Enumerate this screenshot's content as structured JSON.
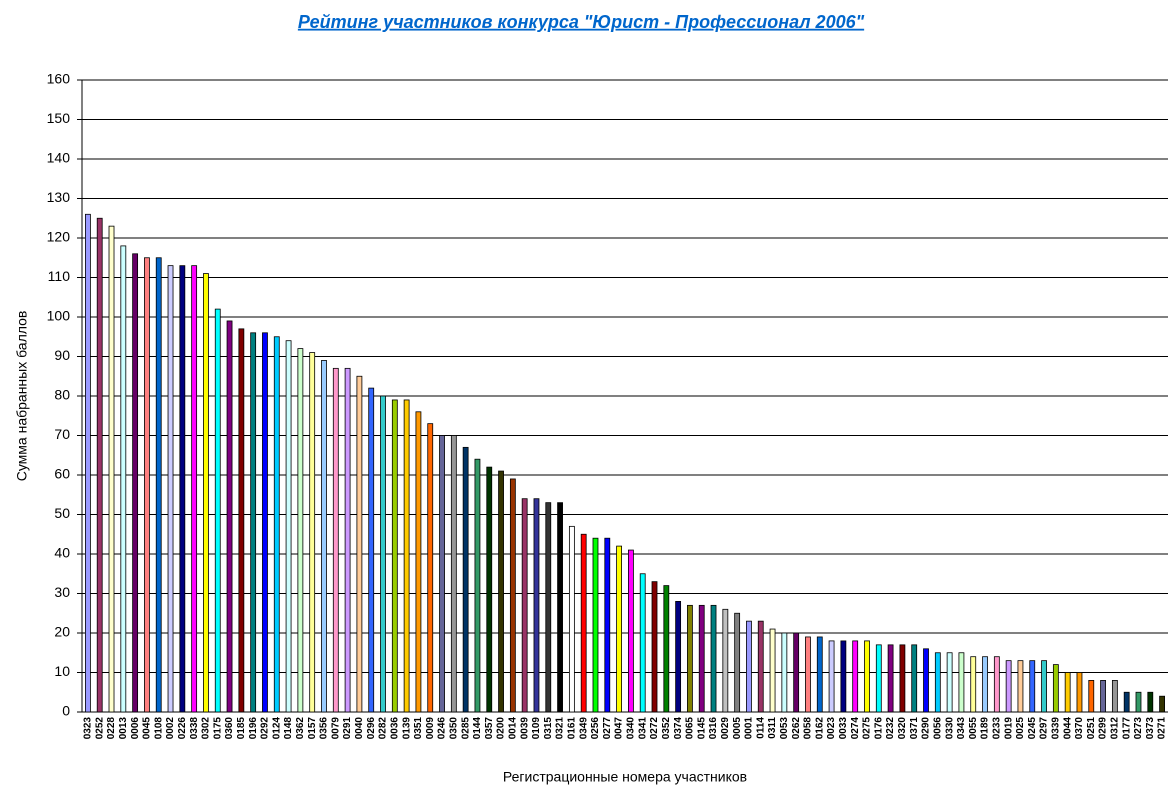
{
  "chart_data": {
    "type": "bar",
    "title": "Рейтинг участников конкурса \"Юрист - Профессионал 2006\"",
    "x_label": "Регистрационные номера участников",
    "y_label": "Сумма набранных баллов",
    "categories": [
      "0323",
      "0252",
      "0228",
      "0013",
      "0006",
      "0045",
      "0108",
      "0002",
      "0226",
      "0338",
      "0302",
      "0175",
      "0360",
      "0185",
      "0196",
      "0292",
      "0124",
      "0148",
      "0362",
      "0157",
      "0356",
      "0079",
      "0291",
      "0040",
      "0296",
      "0282",
      "0036",
      "0139",
      "0351",
      "0009",
      "0246",
      "0350",
      "0285",
      "0144",
      "0357",
      "0200",
      "0014",
      "0039",
      "0109",
      "0315",
      "0321",
      "0161",
      "0349",
      "0256",
      "0277",
      "0047",
      "0340",
      "0341",
      "0272",
      "0352",
      "0374",
      "0065",
      "0145",
      "0316",
      "0029",
      "0005",
      "0001",
      "0114",
      "0311",
      "0053",
      "0262",
      "0058",
      "0162",
      "0023",
      "0033",
      "0274",
      "0275",
      "0176",
      "0232",
      "0320",
      "0371",
      "0290",
      "0056",
      "0330",
      "0343",
      "0055",
      "0189",
      "0233",
      "0019",
      "0025",
      "0245",
      "0297",
      "0339",
      "0044",
      "0370",
      "0251",
      "0299",
      "0312",
      "0177",
      "0273",
      "0373",
      "0271"
    ],
    "values": [
      126,
      125,
      123,
      118,
      116,
      115,
      115,
      113,
      113,
      113,
      111,
      102,
      99,
      97,
      96,
      96,
      95,
      94,
      92,
      91,
      89,
      87,
      87,
      85,
      82,
      80,
      79,
      79,
      76,
      73,
      70,
      70,
      67,
      64,
      62,
      61,
      59,
      54,
      54,
      53,
      53,
      47,
      45,
      44,
      44,
      42,
      41,
      35,
      33,
      32,
      28,
      27,
      27,
      27,
      26,
      25,
      23,
      23,
      21,
      20,
      20,
      19,
      19,
      18,
      18,
      18,
      18,
      17,
      17,
      17,
      17,
      16,
      15,
      15,
      15,
      14,
      14,
      14,
      13,
      13,
      13,
      13,
      12,
      10,
      10,
      8,
      8,
      8,
      5,
      5,
      5,
      4
    ],
    "colors": [
      "#9999ff",
      "#993366",
      "#ffffcc",
      "#ccffff",
      "#660066",
      "#ff8080",
      "#0066cc",
      "#ccccff",
      "#000080",
      "#ff00ff",
      "#ffff00",
      "#00ffff",
      "#800080",
      "#800000",
      "#008080",
      "#0000ff",
      "#00ccff",
      "#ccffff",
      "#ccffcc",
      "#ffff99",
      "#99ccff",
      "#ff99cc",
      "#cc99ff",
      "#ffcc99",
      "#3366ff",
      "#33cccc",
      "#99cc00",
      "#ffcc00",
      "#ff9900",
      "#ff6600",
      "#666699",
      "#969696",
      "#003366",
      "#339966",
      "#003300",
      "#333300",
      "#993300",
      "#993366",
      "#333399",
      "#333333",
      "#000000",
      "#ffffff",
      "#ff0000",
      "#00ff00",
      "#0000ff",
      "#ffff00",
      "#ff00ff",
      "#00ffff",
      "#800000",
      "#008000",
      "#000080",
      "#808000",
      "#800080",
      "#008080",
      "#c0c0c0",
      "#808080",
      "#9999ff",
      "#993366",
      "#ffffcc",
      "#ccffff",
      "#660066",
      "#ff8080",
      "#0066cc",
      "#ccccff",
      "#000080",
      "#ff00ff",
      "#ffff00",
      "#00ffff",
      "#800080",
      "#800000",
      "#008080",
      "#0000ff",
      "#00ccff",
      "#ccffff",
      "#ccffcc",
      "#ffff99",
      "#99ccff",
      "#ff99cc",
      "#cc99ff",
      "#ffcc99",
      "#3366ff",
      "#33cccc",
      "#99cc00",
      "#ffcc00",
      "#ff9900",
      "#ff6600",
      "#666699",
      "#969696",
      "#003366",
      "#339966",
      "#003300",
      "#333300"
    ],
    "ylim": [
      0,
      160
    ],
    "yticks": [
      0,
      10,
      20,
      30,
      40,
      50,
      60,
      70,
      80,
      90,
      100,
      110,
      120,
      130,
      140,
      150,
      160
    ],
    "grid": true
  }
}
